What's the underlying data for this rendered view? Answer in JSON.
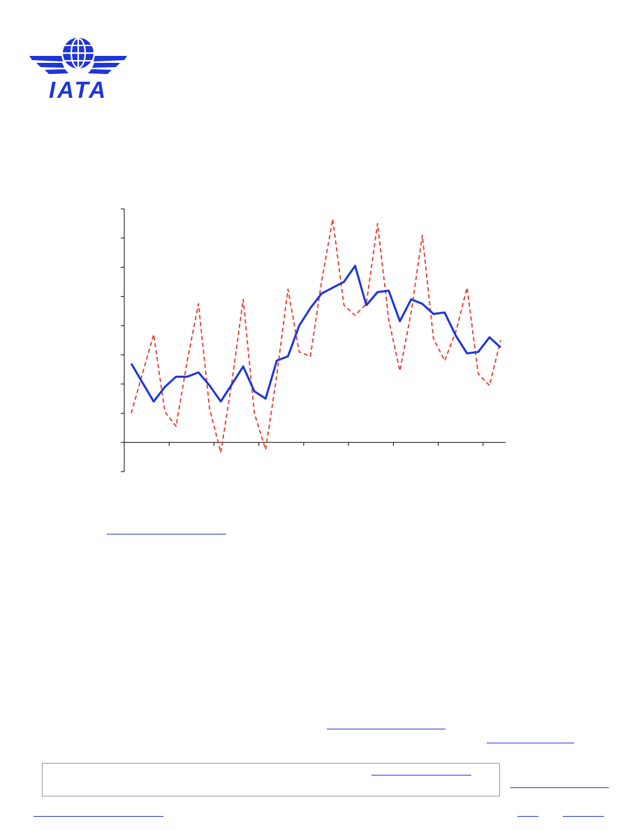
{
  "logo": {
    "text": "IATA",
    "icon": "globe-wings-icon",
    "color": "#1e35d8"
  },
  "chart_data": {
    "type": "line",
    "x": [
      1,
      2,
      3,
      4,
      5,
      6,
      7,
      8,
      9,
      10,
      11,
      12,
      13,
      14,
      15,
      16,
      17,
      18,
      19,
      20,
      21,
      22,
      23,
      24,
      25,
      26,
      27,
      28,
      29,
      30,
      31,
      32,
      33,
      34
    ],
    "series": [
      {
        "style": "solid",
        "color": "#1e35d8",
        "values": [
          2.7,
          2.05,
          1.4,
          1.9,
          2.25,
          2.25,
          2.4,
          1.95,
          1.4,
          2.0,
          2.6,
          1.75,
          1.5,
          2.8,
          2.95,
          4.0,
          4.6,
          5.1,
          5.3,
          5.5,
          6.05,
          4.7,
          5.15,
          5.2,
          4.15,
          4.9,
          4.75,
          4.4,
          4.45,
          3.65,
          3.05,
          3.1,
          3.6,
          3.25
        ]
      },
      {
        "style": "dashed",
        "color": "#e8392e",
        "values": [
          1.0,
          2.35,
          3.7,
          1.05,
          0.55,
          2.8,
          4.75,
          1.15,
          -0.35,
          2.1,
          4.9,
          1.0,
          -0.25,
          2.3,
          5.25,
          3.1,
          2.95,
          5.5,
          7.65,
          4.7,
          4.35,
          4.75,
          7.5,
          4.2,
          2.45,
          4.45,
          7.1,
          3.55,
          2.8,
          3.8,
          5.3,
          2.35,
          1.95,
          3.5
        ]
      }
    ],
    "ylim": [
      -1,
      8
    ],
    "x_ticks": 9,
    "grid": false
  }
}
